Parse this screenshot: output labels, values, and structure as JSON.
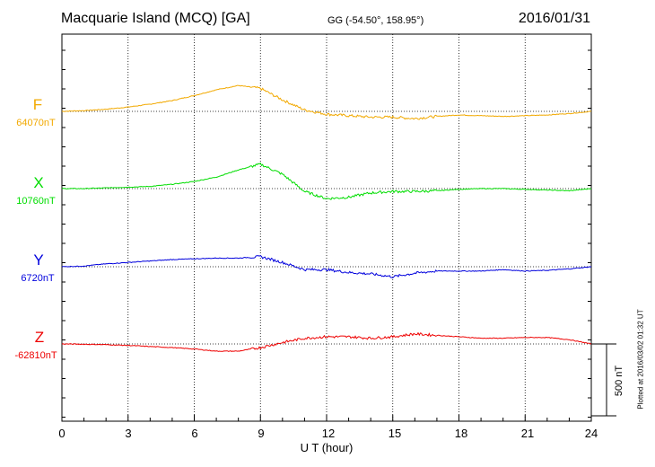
{
  "header": {
    "title": "Macquarie Island (MCQ)  [GA]",
    "coords": "GG (-54.50°, 158.95°)",
    "date": "2016/01/31"
  },
  "footer": {
    "plotted": "Plotted at 2016/03/02 01:32 UT",
    "scale_label": "500 nT"
  },
  "colors": {
    "F": "#f2a900",
    "X": "#00dd00",
    "Y": "#0000dd",
    "Z": "#ee0000"
  },
  "chart_data": {
    "type": "line",
    "xlabel": "U T (hour)",
    "xlim": [
      0,
      24
    ],
    "x_ticks": [
      "0",
      "3",
      "6",
      "9",
      "12",
      "15",
      "18",
      "21",
      "24"
    ],
    "grid": true,
    "scale_nT": 500,
    "x": [
      0,
      1,
      2,
      3,
      4,
      5,
      6,
      7,
      8,
      9,
      10,
      11,
      12,
      13,
      14,
      15,
      16,
      17,
      18,
      19,
      20,
      21,
      22,
      23,
      24
    ],
    "series": [
      {
        "name": "F",
        "baseline_label": "64070nT",
        "baseline": 64070,
        "values": [
          64070,
          64075,
          64085,
          64100,
          64120,
          64145,
          64180,
          64220,
          64250,
          64230,
          64150,
          64080,
          64050,
          64040,
          64030,
          64030,
          64020,
          64035,
          64045,
          64040,
          64035,
          64040,
          64045,
          64055,
          64070
        ]
      },
      {
        "name": "X",
        "baseline_label": "10760nT",
        "baseline": 10760,
        "values": [
          10760,
          10760,
          10765,
          10770,
          10775,
          10790,
          10810,
          10840,
          10890,
          10930,
          10860,
          10740,
          10690,
          10700,
          10730,
          10740,
          10740,
          10745,
          10755,
          10760,
          10760,
          10755,
          10750,
          10745,
          10760
        ]
      },
      {
        "name": "Y",
        "baseline_label": "6720nT",
        "baseline": 6720,
        "values": [
          6720,
          6725,
          6740,
          6750,
          6760,
          6770,
          6775,
          6780,
          6780,
          6790,
          6750,
          6700,
          6700,
          6680,
          6670,
          6650,
          6675,
          6690,
          6690,
          6690,
          6700,
          6690,
          6695,
          6705,
          6720
        ]
      },
      {
        "name": "Z",
        "baseline_label": "-62810nT",
        "baseline": -62810,
        "values": [
          -62810,
          -62812,
          -62815,
          -62820,
          -62828,
          -62835,
          -62845,
          -62860,
          -62860,
          -62835,
          -62800,
          -62770,
          -62760,
          -62760,
          -62770,
          -62760,
          -62740,
          -62750,
          -62760,
          -62770,
          -62770,
          -62765,
          -62765,
          -62780,
          -62810
        ]
      }
    ]
  }
}
